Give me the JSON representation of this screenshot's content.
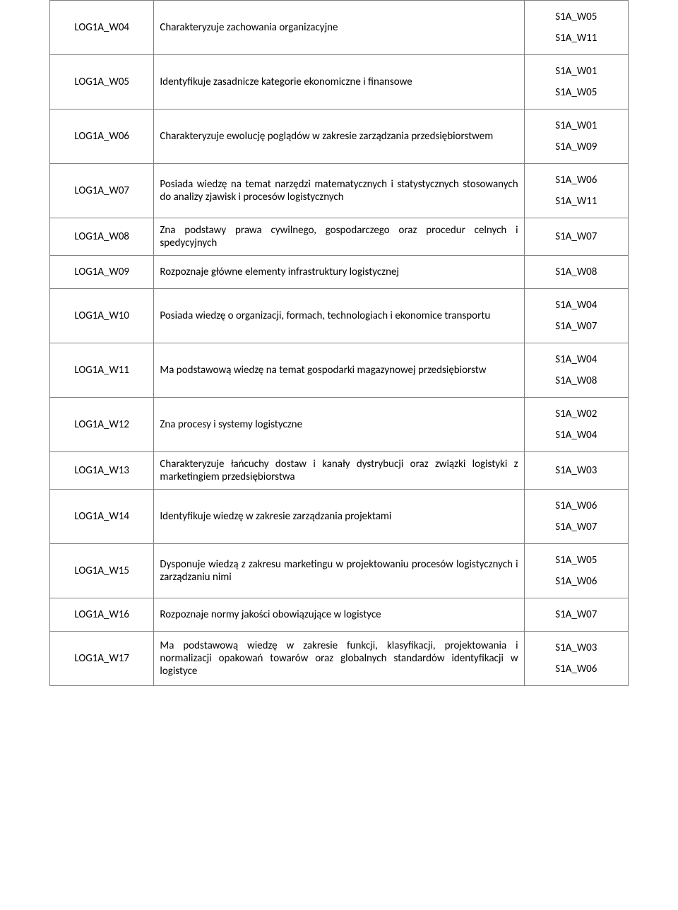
{
  "table": {
    "columns": [
      "code",
      "description",
      "references"
    ],
    "border_color": "#808080",
    "background_color": "#ffffff",
    "font_family": "Calibri",
    "font_size_pt": 11,
    "text_color": "#000000",
    "col_widths_pct": [
      18,
      64,
      18
    ],
    "rows": [
      {
        "code": "LOG1A_W04",
        "desc": "Charakteryzuje zachowania organizacyjne",
        "justify": false,
        "refs": [
          "S1A_W05",
          "S1A_W11"
        ]
      },
      {
        "code": "LOG1A_W05",
        "desc": "Identyfikuje zasadnicze kategorie ekonomiczne i finansowe",
        "justify": false,
        "refs": [
          "S1A_W01",
          "S1A_W05"
        ]
      },
      {
        "code": "LOG1A_W06",
        "desc": "Charakteryzuje ewolucję poglądów w zakresie zarządzania przedsiębiorstwem",
        "justify": true,
        "refs": [
          "S1A_W01",
          "S1A_W09"
        ]
      },
      {
        "code": "LOG1A_W07",
        "desc": "Posiada wiedzę na temat narzędzi matematycznych i statystycznych stosowanych do analizy zjawisk i procesów logistycznych",
        "justify": true,
        "refs": [
          "S1A_W06",
          "S1A_W11"
        ]
      },
      {
        "code": "LOG1A_W08",
        "desc": "Zna podstawy prawa cywilnego, gospodarczego oraz procedur celnych i spedycyjnych",
        "justify": true,
        "refs": [
          "S1A_W07"
        ]
      },
      {
        "code": "LOG1A_W09",
        "desc": "Rozpoznaje główne elementy infrastruktury logistycznej",
        "justify": false,
        "refs": [
          "S1A_W08"
        ]
      },
      {
        "code": "LOG1A_W10",
        "desc": "Posiada wiedzę o organizacji, formach, technologiach i ekonomice transportu",
        "justify": true,
        "refs": [
          "S1A_W04",
          "S1A_W07"
        ]
      },
      {
        "code": "LOG1A_W11",
        "desc": "Ma podstawową wiedzę na temat gospodarki magazynowej przedsiębiorstw",
        "justify": true,
        "refs": [
          "S1A_W04",
          "S1A_W08"
        ]
      },
      {
        "code": "LOG1A_W12",
        "desc": "Zna procesy i systemy logistyczne",
        "justify": false,
        "refs": [
          "S1A_W02",
          "S1A_W04"
        ]
      },
      {
        "code": "LOG1A_W13",
        "desc": "Charakteryzuje łańcuchy dostaw i kanały dystrybucji oraz związki logistyki z marketingiem przedsiębiorstwa",
        "justify": true,
        "refs": [
          "S1A_W03"
        ]
      },
      {
        "code": "LOG1A_W14",
        "desc": "Identyfikuje wiedzę w zakresie zarządzania projektami",
        "justify": false,
        "refs": [
          "S1A_W06",
          "S1A_W07"
        ]
      },
      {
        "code": "LOG1A_W15",
        "desc": "Dysponuje wiedzą z zakresu marketingu w projektowaniu procesów logistycznych i zarządzaniu nimi",
        "justify": true,
        "refs": [
          "S1A_W05",
          "S1A_W06"
        ]
      },
      {
        "code": "LOG1A_W16",
        "desc": "Rozpoznaje normy jakości obowiązujące w logistyce",
        "justify": false,
        "refs": [
          "S1A_W07"
        ]
      },
      {
        "code": "LOG1A_W17",
        "desc": "Ma podstawową wiedzę w zakresie funkcji, klasyfikacji, projektowania i normalizacji opakowań towarów oraz globalnych standardów identyfikacji w logistyce",
        "justify": true,
        "refs": [
          "S1A_W03",
          "S1A_W06"
        ]
      }
    ]
  }
}
